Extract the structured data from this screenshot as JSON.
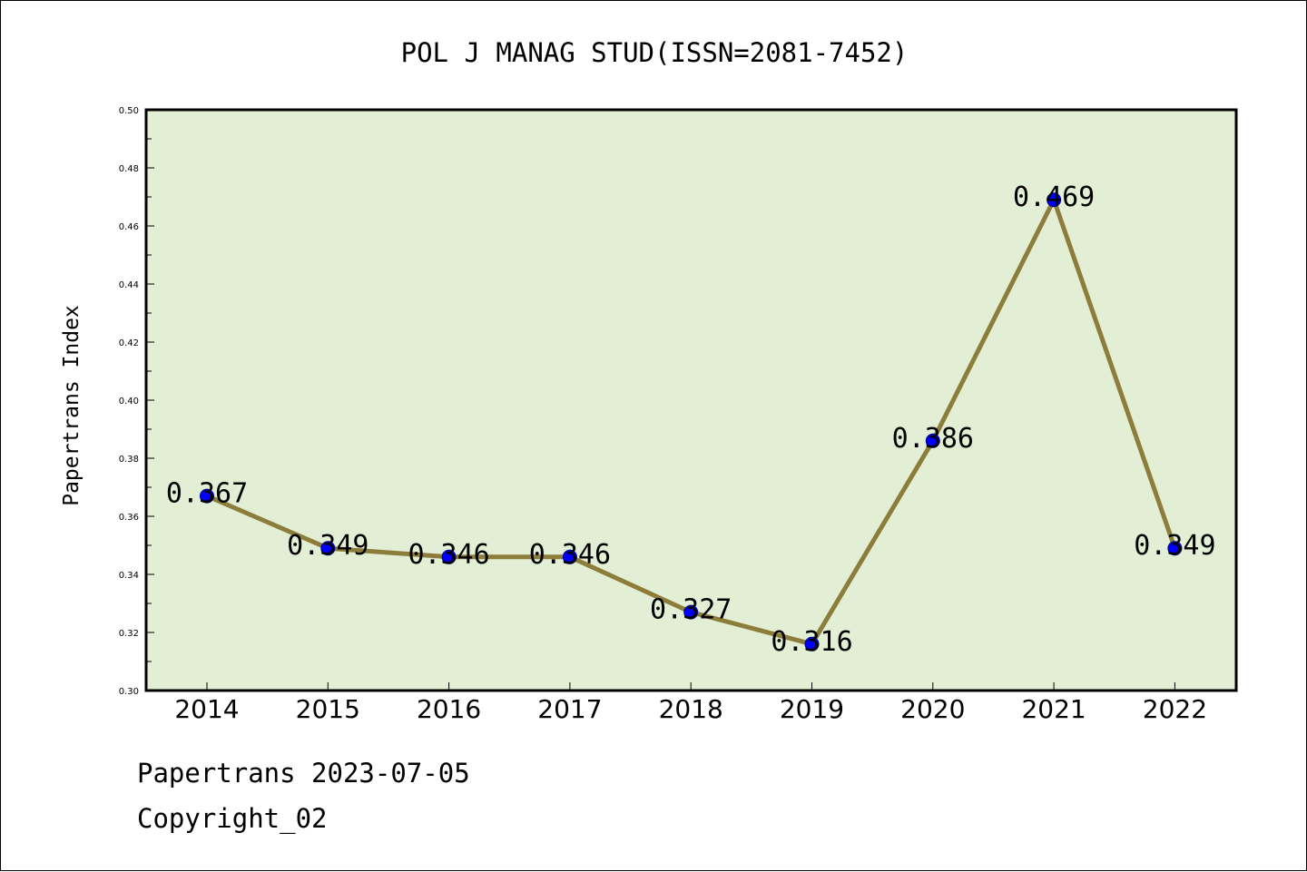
{
  "chart_data": {
    "type": "line",
    "title": "POL J MANAG STUD(ISSN=2081-7452)",
    "xlabel": "",
    "ylabel": "Papertrans Index",
    "categories": [
      "2014",
      "2015",
      "2016",
      "2017",
      "2018",
      "2019",
      "2020",
      "2021",
      "2022"
    ],
    "values": [
      0.367,
      0.349,
      0.346,
      0.346,
      0.327,
      0.316,
      0.386,
      0.469,
      0.349
    ],
    "data_labels": [
      "0.367",
      "0.349",
      "0.346",
      "0.346",
      "0.327",
      "0.316",
      "0.386",
      "0.469",
      "0.349"
    ],
    "ylim": [
      0.3,
      0.5
    ],
    "y_ticks": [
      "0.30",
      "0.32",
      "0.34",
      "0.36",
      "0.38",
      "0.40",
      "0.42",
      "0.44",
      "0.46",
      "0.48",
      "0.50"
    ],
    "grid": false,
    "legend": "none",
    "line_color": "#8c7d3a",
    "marker_color": "#0000ff",
    "plot_background": "#e2efd5"
  },
  "footer": {
    "line1": "Papertrans 2023-07-05",
    "line2": "Copyright_02"
  }
}
